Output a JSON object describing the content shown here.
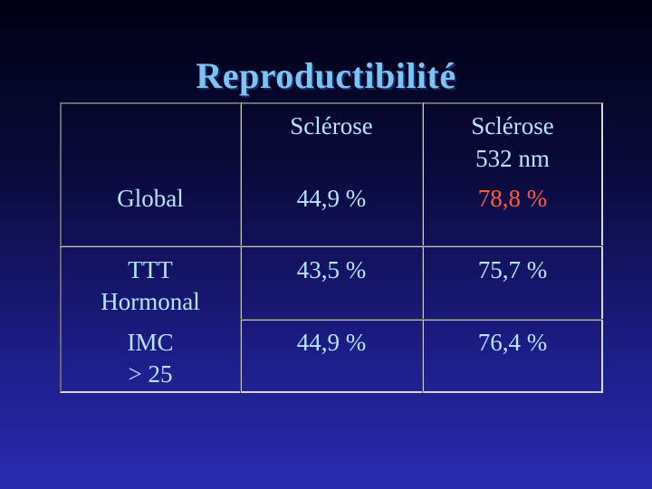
{
  "slide": {
    "title": "Reproductibilité"
  },
  "table": {
    "headers": {
      "col1": "Sclérose",
      "col2_line1": "Sclérose",
      "col2_line2": "532 nm"
    },
    "rows": [
      {
        "label_line1": "Global",
        "label_line2": "",
        "value1": "44,9 %",
        "value2": "78,8 %"
      },
      {
        "label_line1": "TTT",
        "label_line2": "Hormonal",
        "value1": "43,5 %",
        "value2": "75,7 %"
      },
      {
        "label_line1": "IMC",
        "label_line2": "> 25",
        "value1": "44,9 %",
        "value2": "76,4 %"
      }
    ]
  },
  "colors": {
    "title": "#7cc4f2",
    "text": "#b8e4ff",
    "highlight": "#ff5a3c"
  }
}
